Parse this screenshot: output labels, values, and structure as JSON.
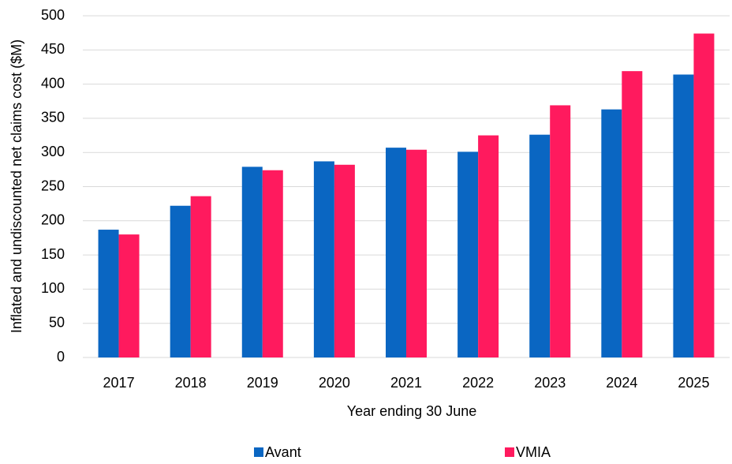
{
  "chart_data": {
    "type": "bar",
    "categories": [
      "2017",
      "2018",
      "2019",
      "2020",
      "2021",
      "2022",
      "2023",
      "2024",
      "2025"
    ],
    "series": [
      {
        "name": "Avant",
        "color": "#0a66c2",
        "values": [
          187,
          222,
          279,
          287,
          307,
          301,
          326,
          363,
          414
        ]
      },
      {
        "name": "VMIA",
        "color": "#ff1a5e",
        "values": [
          180,
          236,
          274,
          282,
          304,
          325,
          369,
          419,
          474
        ]
      }
    ],
    "ylim": [
      0,
      500
    ],
    "yticks": [
      0,
      50,
      100,
      150,
      200,
      250,
      300,
      350,
      400,
      450,
      500
    ],
    "grid": true,
    "legend": "bottom",
    "xlabel": "Year ending 30 June",
    "ylabel": "Inflated and undiscounted net claims cost ($M)"
  }
}
